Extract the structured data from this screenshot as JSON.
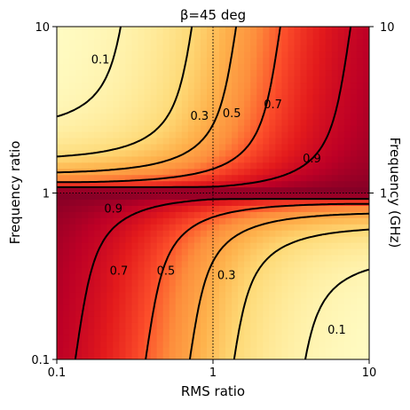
{
  "chart_data": {
    "type": "heatmap",
    "title": "β=45 deg",
    "xlabel": "RMS ratio",
    "ylabel": "Frequency ratio",
    "ylabel_right": "Frequency (GHz)",
    "x_scale": "log",
    "y_scale": "log",
    "xlim": [
      0.1,
      10
    ],
    "ylim": [
      0.1,
      10
    ],
    "x_ticks": [
      {
        "value": 0.1,
        "label": "0.1"
      },
      {
        "value": 1,
        "label": "1"
      },
      {
        "value": 10,
        "label": "10"
      }
    ],
    "y_ticks": [
      {
        "value": 0.1,
        "label": "0.1"
      },
      {
        "value": 1,
        "label": "1"
      },
      {
        "value": 10,
        "label": "10"
      }
    ],
    "y_right_ticks": [
      {
        "value": 1,
        "label": "1"
      },
      {
        "value": 10,
        "label": "10"
      }
    ],
    "reference_lines": {
      "x": 1,
      "y": 1,
      "style": "dotted"
    },
    "colormap": "YlOrRd",
    "contour_levels": [
      0.1,
      0.3,
      0.5,
      0.7,
      0.9
    ],
    "contour_labels": [
      {
        "label": "0.1",
        "x": 0.19,
        "y": 6.3
      },
      {
        "label": "0.3",
        "x": 0.82,
        "y": 2.9
      },
      {
        "label": "0.5",
        "x": 1.32,
        "y": 3.0
      },
      {
        "label": "0.7",
        "x": 2.42,
        "y": 3.4
      },
      {
        "label": "0.9",
        "x": 4.3,
        "y": 1.6
      },
      {
        "label": "0.9",
        "x": 0.23,
        "y": 0.8
      },
      {
        "label": "0.7",
        "x": 0.25,
        "y": 0.34
      },
      {
        "label": "0.5",
        "x": 0.5,
        "y": 0.34
      },
      {
        "label": "0.3",
        "x": 1.22,
        "y": 0.32
      },
      {
        "label": "0.1",
        "x": 6.2,
        "y": 0.15
      }
    ],
    "colors": {
      "low": "#ffffcc",
      "high": "#800026",
      "contour": "#000000"
    }
  }
}
